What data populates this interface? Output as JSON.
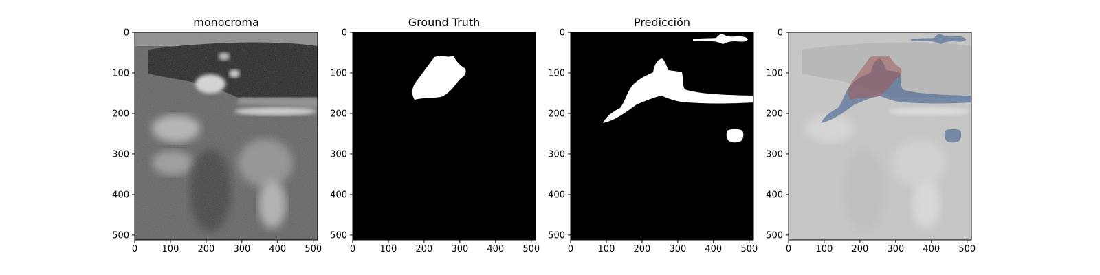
{
  "panels": [
    {
      "title": "monocroma"
    },
    {
      "title": "Ground Truth"
    },
    {
      "title": "Predicción"
    },
    {
      "title": ""
    }
  ],
  "axes": {
    "x_ticks": [
      "0",
      "100",
      "200",
      "300",
      "400",
      "500"
    ],
    "y_ticks": [
      "0",
      "100",
      "200",
      "300",
      "400",
      "500"
    ]
  },
  "colors": {
    "mask_foreground": "#ffffff",
    "mask_background": "#000000",
    "overlay_prediction": "#3f5f8f",
    "overlay_ground_truth": "#a05a5a"
  }
}
